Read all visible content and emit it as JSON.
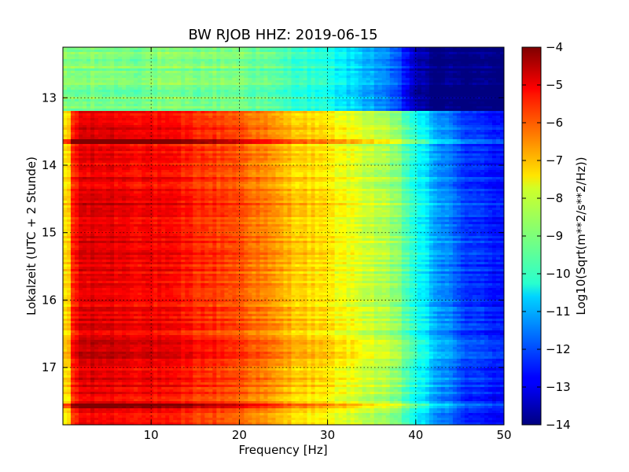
{
  "chart_data": {
    "type": "heatmap",
    "title": "BW RJOB HHZ: 2019-06-15",
    "xlabel": "Frequency [Hz]",
    "ylabel": "Lokalzeit (UTC + 2 Stunde)",
    "colorbar_label": "Log10(Sqrt(m**2/s**2/Hz))",
    "x_range": [
      0,
      50
    ],
    "y_range": [
      12.25,
      17.85
    ],
    "x_ticks": [
      10,
      20,
      30,
      40,
      50
    ],
    "y_ticks": [
      13,
      14,
      15,
      16,
      17
    ],
    "color_range": [
      -14,
      -4
    ],
    "color_ticks": [
      -4,
      -5,
      -6,
      -7,
      -8,
      -9,
      -10,
      -11,
      -12,
      -13,
      -14
    ],
    "colormap": "jet",
    "grid": true,
    "data_gap_end_hour": 13.18,
    "profile_frequencies": [
      0,
      2,
      5,
      10,
      15,
      20,
      25,
      30,
      35,
      38,
      40,
      42,
      45,
      48,
      50
    ],
    "profile_before_gap": [
      -9,
      -9,
      -9,
      -9,
      -9,
      -9,
      -9.5,
      -10,
      -11,
      -12,
      -13.4,
      -14,
      -14,
      -14,
      -14
    ],
    "profile_after_gap": [
      -6.5,
      -5,
      -5,
      -5.2,
      -5.6,
      -6,
      -7,
      -7.6,
      -8.3,
      -9,
      -10,
      -11,
      -12,
      -12.5,
      -12.5
    ],
    "strong_events_hour": [
      13.65,
      17.57
    ]
  }
}
